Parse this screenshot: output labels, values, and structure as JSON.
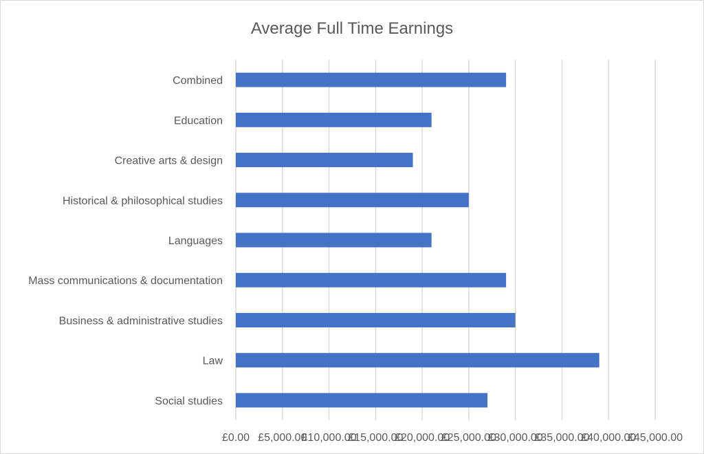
{
  "chart_data": {
    "type": "bar",
    "orientation": "horizontal",
    "title": "Average Full Time Earnings",
    "categories": [
      "Combined ",
      "Education",
      "Creative arts & design",
      "Historical & philosophical studies",
      "Languages",
      "Mass communications & documentation",
      "Business & administrative studies",
      "Law",
      "Social studies"
    ],
    "values": [
      29000,
      21000,
      19000,
      25000,
      21000,
      29000,
      30000,
      39000,
      27000
    ],
    "xlim": [
      0,
      45000
    ],
    "x_ticks": [
      0,
      5000,
      10000,
      15000,
      20000,
      25000,
      30000,
      35000,
      40000,
      45000
    ],
    "x_tick_labels": [
      "£0.00",
      "£5,000.00",
      "£10,000.00",
      "£15,000.00",
      "£20,000.00",
      "£25,000.00",
      "£30,000.00",
      "£35,000.00",
      "£40,000.00",
      "£45,000.00"
    ],
    "bar_color": "#4472c4",
    "gridlines": true,
    "legend": false
  }
}
